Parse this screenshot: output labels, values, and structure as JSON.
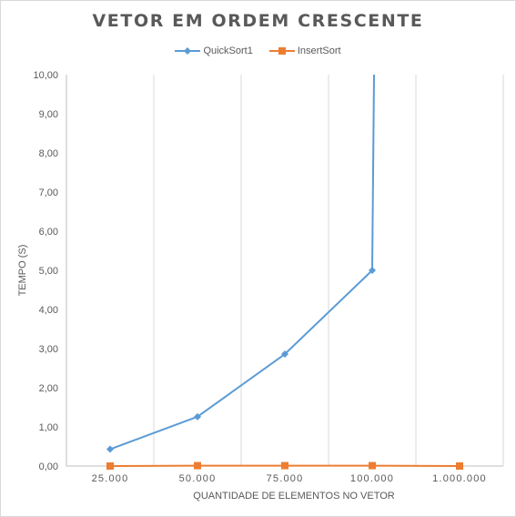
{
  "chart_data": {
    "type": "line",
    "title": "VETOR EM ORDEM CRESCENTE",
    "xlabel": "QUANTIDADE DE ELEMENTOS NO VETOR",
    "ylabel": "TEMPO (S)",
    "categories": [
      "25.000",
      "50.000",
      "75.000",
      "100.000",
      "1.000.000"
    ],
    "ylim": [
      0,
      10
    ],
    "yticks": [
      "0,00",
      "1,00",
      "2,00",
      "3,00",
      "4,00",
      "5,00",
      "6,00",
      "7,00",
      "8,00",
      "9,00",
      "10,00"
    ],
    "grid": "vertical",
    "legend": "top",
    "series": [
      {
        "name": "QuickSort1",
        "color": "#5b9bd5",
        "marker": "diamond",
        "values": [
          0.43,
          1.26,
          2.86,
          5.0,
          null
        ],
        "note_offscale_last": true
      },
      {
        "name": "InsertSort",
        "color": "#ed7d31",
        "marker": "square",
        "values": [
          0.0,
          0.01,
          0.01,
          0.01,
          0.0
        ]
      }
    ]
  }
}
